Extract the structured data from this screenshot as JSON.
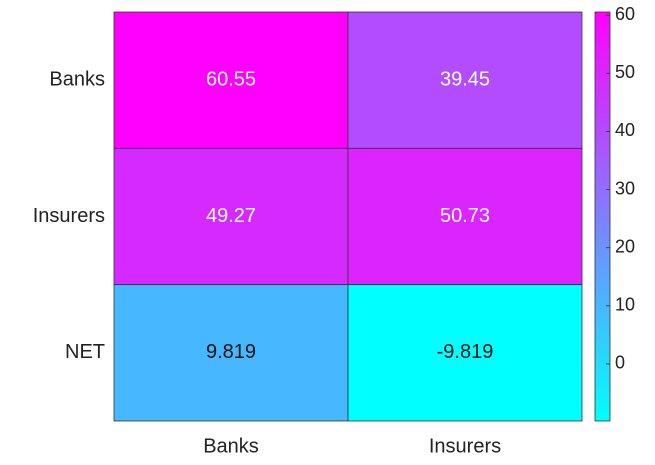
{
  "chart_data": {
    "type": "heatmap",
    "x_categories": [
      "Banks",
      "Insurers"
    ],
    "y_categories": [
      "Banks",
      "Insurers",
      "NET"
    ],
    "values": [
      [
        60.55,
        39.45
      ],
      [
        49.27,
        50.73
      ],
      [
        9.819,
        -9.819
      ]
    ],
    "colormap": "cool",
    "clim": [
      -9.819,
      60.55
    ],
    "cticks": [
      0,
      10,
      20,
      30,
      40,
      50,
      60
    ],
    "colorbar": true
  }
}
